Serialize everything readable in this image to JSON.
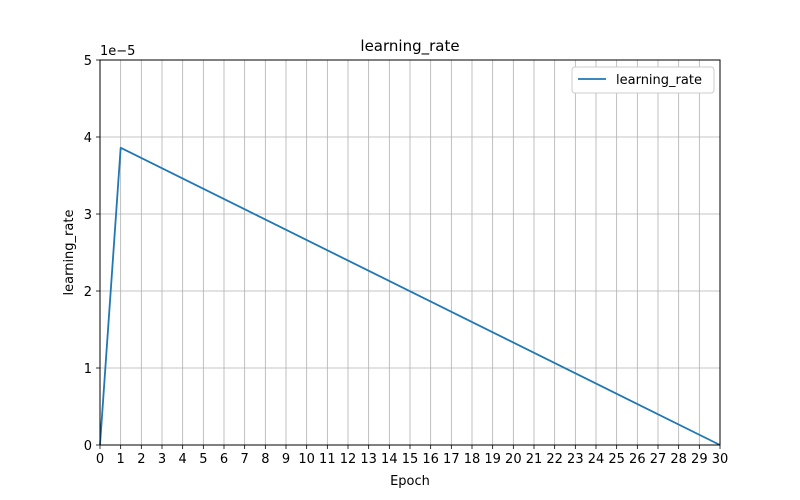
{
  "chart_data": {
    "type": "line",
    "title": "learning_rate",
    "xlabel": "Epoch",
    "ylabel": "learning_rate",
    "y_scale_label": "1e−5",
    "xlim": [
      0,
      30
    ],
    "ylim": [
      0,
      5e-05
    ],
    "x_ticks": [
      0,
      1,
      2,
      3,
      4,
      5,
      6,
      7,
      8,
      9,
      10,
      11,
      12,
      13,
      14,
      15,
      16,
      17,
      18,
      19,
      20,
      21,
      22,
      23,
      24,
      25,
      26,
      27,
      28,
      29,
      30
    ],
    "y_ticks": [
      0,
      1e-05,
      2e-05,
      3e-05,
      4e-05,
      5e-05
    ],
    "y_tick_labels": [
      "0",
      "1",
      "2",
      "3",
      "4",
      "5"
    ],
    "grid": true,
    "legend_position": "top-right",
    "series": [
      {
        "name": "learning_rate",
        "color": "#1f77b4",
        "x": [
          0,
          1,
          30
        ],
        "y": [
          0,
          3.86e-05,
          0
        ]
      }
    ]
  }
}
